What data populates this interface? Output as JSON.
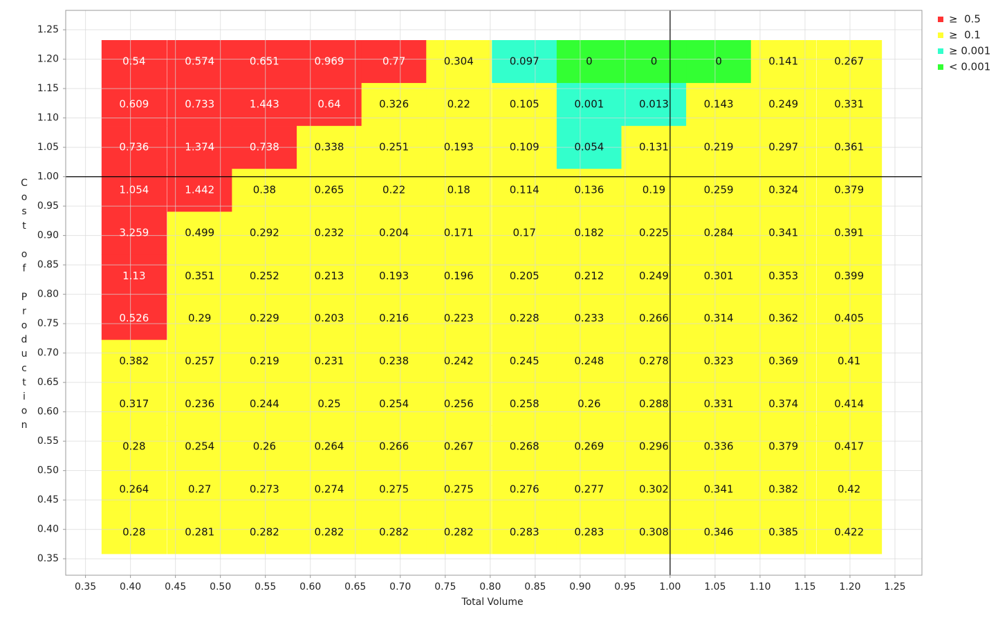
{
  "chart_data": {
    "type": "heatmap",
    "x_label": "Total Volume",
    "y_label": "Cost of Production",
    "x": [
      0.404,
      0.477,
      0.549,
      0.621,
      0.693,
      0.765,
      0.838,
      0.91,
      0.982,
      1.054,
      1.126,
      1.199
    ],
    "y": [
      1.196,
      1.123,
      1.05,
      0.977,
      0.904,
      0.831,
      0.759,
      0.686,
      0.613,
      0.541,
      0.468,
      0.395
    ],
    "values": [
      [
        0.54,
        0.574,
        0.651,
        0.969,
        0.77,
        0.304,
        0.097,
        0,
        0,
        0,
        0.141,
        0.267
      ],
      [
        0.609,
        0.733,
        1.443,
        0.64,
        0.326,
        0.22,
        0.105,
        0.001,
        0.013,
        0.143,
        0.249,
        0.331
      ],
      [
        0.736,
        1.374,
        0.738,
        0.338,
        0.251,
        0.193,
        0.109,
        0.054,
        0.131,
        0.219,
        0.297,
        0.361
      ],
      [
        1.054,
        1.442,
        0.38,
        0.265,
        0.22,
        0.18,
        0.114,
        0.136,
        0.19,
        0.259,
        0.324,
        0.379
      ],
      [
        3.259,
        0.499,
        0.292,
        0.232,
        0.204,
        0.171,
        0.17,
        0.182,
        0.225,
        0.284,
        0.341,
        0.391
      ],
      [
        1.13,
        0.351,
        0.252,
        0.213,
        0.193,
        0.196,
        0.205,
        0.212,
        0.249,
        0.301,
        0.353,
        0.399
      ],
      [
        0.526,
        0.29,
        0.229,
        0.203,
        0.216,
        0.223,
        0.228,
        0.233,
        0.266,
        0.314,
        0.362,
        0.405
      ],
      [
        0.382,
        0.257,
        0.219,
        0.231,
        0.238,
        0.242,
        0.245,
        0.248,
        0.278,
        0.323,
        0.369,
        0.41
      ],
      [
        0.317,
        0.236,
        0.244,
        0.25,
        0.254,
        0.256,
        0.258,
        0.26,
        0.288,
        0.331,
        0.374,
        0.414
      ],
      [
        0.28,
        0.254,
        0.26,
        0.264,
        0.266,
        0.267,
        0.268,
        0.269,
        0.296,
        0.336,
        0.379,
        0.417
      ],
      [
        0.264,
        0.27,
        0.273,
        0.274,
        0.275,
        0.275,
        0.276,
        0.277,
        0.302,
        0.341,
        0.382,
        0.42
      ],
      [
        0.28,
        0.281,
        0.282,
        0.282,
        0.282,
        0.282,
        0.283,
        0.283,
        0.308,
        0.346,
        0.385,
        0.422
      ]
    ],
    "color_scale": [
      {
        "label": "≥  0.5",
        "threshold": 0.5,
        "color": "#ff3333"
      },
      {
        "label": "≥  0.1",
        "threshold": 0.1,
        "color": "#ffff33"
      },
      {
        "label": "≥ 0.001",
        "threshold": 0.001,
        "color": "#33ffcc"
      },
      {
        "label": "< 0.001",
        "color": "#33ff33"
      }
    ],
    "crosshair": {
      "x": 1,
      "y": 1
    },
    "xlim": [
      0.328,
      1.28
    ],
    "ylim": [
      0.322,
      1.283
    ],
    "xticks": [
      0.35,
      {
        "value": 0.4,
        "label": "0.40"
      },
      0.45,
      {
        "value": 0.5,
        "label": "0.50"
      },
      0.55,
      {
        "value": 0.6,
        "label": "0.60"
      },
      0.65,
      {
        "value": 0.7,
        "label": "0.70"
      },
      0.75,
      {
        "value": 0.8,
        "label": "0.80"
      },
      0.85,
      {
        "value": 0.9,
        "label": "0.90"
      },
      0.95,
      {
        "value": 1,
        "label": "1.00"
      },
      1.05,
      {
        "value": 1.1,
        "label": "1.10"
      },
      1.15,
      {
        "value": 1.2,
        "label": "1.20"
      },
      1.25
    ],
    "yticks": [
      0.35,
      {
        "value": 0.4,
        "label": "0.40"
      },
      0.45,
      {
        "value": 0.5,
        "label": "0.50"
      },
      0.55,
      {
        "value": 0.6,
        "label": "0.60"
      },
      0.65,
      {
        "value": 0.7,
        "label": "0.70"
      },
      0.75,
      {
        "value": 0.8,
        "label": "0.80"
      },
      0.85,
      {
        "value": 0.9,
        "label": "0.90"
      },
      0.95,
      {
        "value": 1,
        "label": "1.00"
      },
      1.05,
      {
        "value": 1.1,
        "label": "1.10"
      },
      1.15,
      {
        "value": 1.2,
        "label": "1.20"
      },
      1.25
    ],
    "grid": true
  }
}
